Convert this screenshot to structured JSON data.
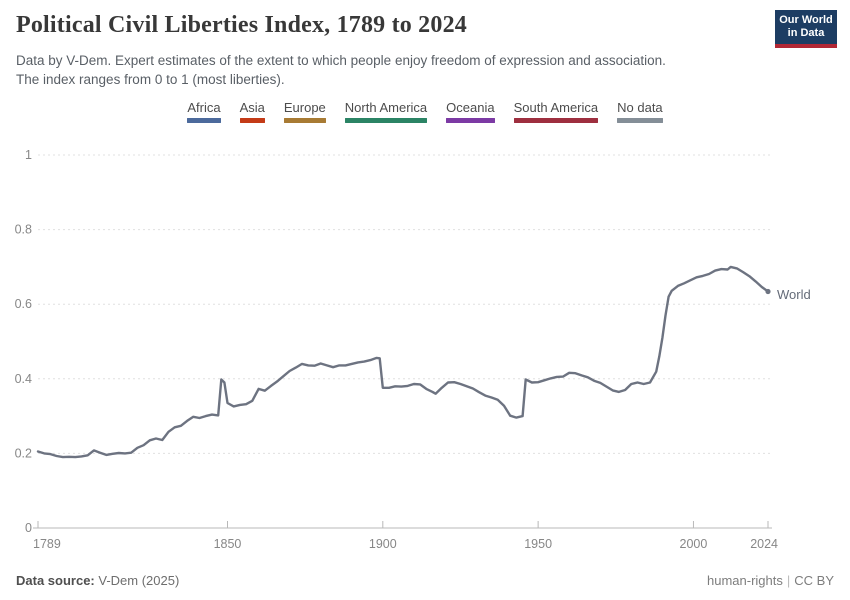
{
  "header": {
    "title": "Political Civil Liberties Index, 1789 to 2024",
    "subtitle_line1": "Data by V-Dem. Expert estimates of the extent to which people enjoy freedom of expression and association.",
    "subtitle_line2": "The index ranges from 0 to 1 (most liberties)."
  },
  "logo": {
    "line1": "Our World",
    "line2": "in Data",
    "bg_color": "#1d3d63",
    "accent_color": "#b22735"
  },
  "legend": {
    "items": [
      {
        "label": "Africa",
        "color": "#4c6a9c"
      },
      {
        "label": "Asia",
        "color": "#c43b17"
      },
      {
        "label": "Europe",
        "color": "#a87b34"
      },
      {
        "label": "North America",
        "color": "#2b8465"
      },
      {
        "label": "Oceania",
        "color": "#7c3aa4"
      },
      {
        "label": "South America",
        "color": "#9e2f3f"
      },
      {
        "label": "No data",
        "color": "#848e97"
      }
    ]
  },
  "footer": {
    "data_source_label": "Data source:",
    "data_source_value": " V-Dem (2025)",
    "topic": "human-rights",
    "license": "CC BY"
  },
  "chart_data": {
    "type": "line",
    "title": "Political Civil Liberties Index, 1789 to 2024",
    "xlabel": "",
    "ylabel": "",
    "x_range": [
      1789,
      2024
    ],
    "y_range": [
      0,
      1
    ],
    "x_ticks": [
      1789,
      1850,
      1900,
      1950,
      2000,
      2024
    ],
    "y_ticks": [
      0,
      0.2,
      0.4,
      0.6,
      0.8,
      1
    ],
    "grid": "dashed-horizontal",
    "legend_position": "end-of-line",
    "series": [
      {
        "name": "World",
        "color": "#6d7381",
        "points": [
          [
            1789,
            0.205
          ],
          [
            1791,
            0.2
          ],
          [
            1793,
            0.198
          ],
          [
            1795,
            0.193
          ],
          [
            1797,
            0.19
          ],
          [
            1799,
            0.191
          ],
          [
            1801,
            0.19
          ],
          [
            1803,
            0.192
          ],
          [
            1805,
            0.195
          ],
          [
            1807,
            0.208
          ],
          [
            1809,
            0.202
          ],
          [
            1811,
            0.196
          ],
          [
            1813,
            0.199
          ],
          [
            1815,
            0.201
          ],
          [
            1817,
            0.2
          ],
          [
            1819,
            0.202
          ],
          [
            1821,
            0.215
          ],
          [
            1823,
            0.222
          ],
          [
            1825,
            0.235
          ],
          [
            1827,
            0.24
          ],
          [
            1829,
            0.236
          ],
          [
            1831,
            0.258
          ],
          [
            1833,
            0.27
          ],
          [
            1835,
            0.274
          ],
          [
            1837,
            0.287
          ],
          [
            1839,
            0.298
          ],
          [
            1841,
            0.295
          ],
          [
            1843,
            0.3
          ],
          [
            1845,
            0.304
          ],
          [
            1847,
            0.302
          ],
          [
            1848,
            0.398
          ],
          [
            1849,
            0.39
          ],
          [
            1850,
            0.335
          ],
          [
            1852,
            0.326
          ],
          [
            1854,
            0.33
          ],
          [
            1856,
            0.332
          ],
          [
            1858,
            0.341
          ],
          [
            1860,
            0.373
          ],
          [
            1862,
            0.368
          ],
          [
            1864,
            0.381
          ],
          [
            1866,
            0.393
          ],
          [
            1868,
            0.407
          ],
          [
            1870,
            0.421
          ],
          [
            1872,
            0.43
          ],
          [
            1874,
            0.44
          ],
          [
            1876,
            0.436
          ],
          [
            1878,
            0.435
          ],
          [
            1880,
            0.441
          ],
          [
            1882,
            0.436
          ],
          [
            1884,
            0.431
          ],
          [
            1886,
            0.436
          ],
          [
            1888,
            0.436
          ],
          [
            1890,
            0.44
          ],
          [
            1892,
            0.444
          ],
          [
            1894,
            0.446
          ],
          [
            1896,
            0.45
          ],
          [
            1898,
            0.456
          ],
          [
            1899,
            0.455
          ],
          [
            1900,
            0.376
          ],
          [
            1902,
            0.376
          ],
          [
            1904,
            0.38
          ],
          [
            1906,
            0.379
          ],
          [
            1908,
            0.381
          ],
          [
            1910,
            0.386
          ],
          [
            1912,
            0.385
          ],
          [
            1914,
            0.373
          ],
          [
            1916,
            0.365
          ],
          [
            1917,
            0.36
          ],
          [
            1919,
            0.376
          ],
          [
            1921,
            0.39
          ],
          [
            1923,
            0.391
          ],
          [
            1925,
            0.386
          ],
          [
            1927,
            0.38
          ],
          [
            1929,
            0.374
          ],
          [
            1931,
            0.364
          ],
          [
            1933,
            0.355
          ],
          [
            1935,
            0.35
          ],
          [
            1937,
            0.344
          ],
          [
            1939,
            0.328
          ],
          [
            1941,
            0.301
          ],
          [
            1943,
            0.296
          ],
          [
            1945,
            0.3
          ],
          [
            1946,
            0.398
          ],
          [
            1948,
            0.39
          ],
          [
            1950,
            0.391
          ],
          [
            1952,
            0.396
          ],
          [
            1954,
            0.401
          ],
          [
            1956,
            0.405
          ],
          [
            1958,
            0.406
          ],
          [
            1960,
            0.416
          ],
          [
            1962,
            0.415
          ],
          [
            1964,
            0.409
          ],
          [
            1966,
            0.404
          ],
          [
            1968,
            0.395
          ],
          [
            1970,
            0.389
          ],
          [
            1972,
            0.379
          ],
          [
            1974,
            0.369
          ],
          [
            1976,
            0.365
          ],
          [
            1978,
            0.37
          ],
          [
            1980,
            0.386
          ],
          [
            1982,
            0.39
          ],
          [
            1984,
            0.386
          ],
          [
            1986,
            0.39
          ],
          [
            1988,
            0.419
          ],
          [
            1989,
            0.46
          ],
          [
            1990,
            0.51
          ],
          [
            1991,
            0.57
          ],
          [
            1992,
            0.62
          ],
          [
            1993,
            0.636
          ],
          [
            1995,
            0.649
          ],
          [
            1997,
            0.656
          ],
          [
            1999,
            0.664
          ],
          [
            2001,
            0.672
          ],
          [
            2003,
            0.676
          ],
          [
            2005,
            0.681
          ],
          [
            2007,
            0.69
          ],
          [
            2009,
            0.694
          ],
          [
            2011,
            0.693
          ],
          [
            2012,
            0.7
          ],
          [
            2014,
            0.696
          ],
          [
            2016,
            0.686
          ],
          [
            2018,
            0.675
          ],
          [
            2020,
            0.661
          ],
          [
            2022,
            0.646
          ],
          [
            2024,
            0.634
          ]
        ]
      }
    ]
  }
}
